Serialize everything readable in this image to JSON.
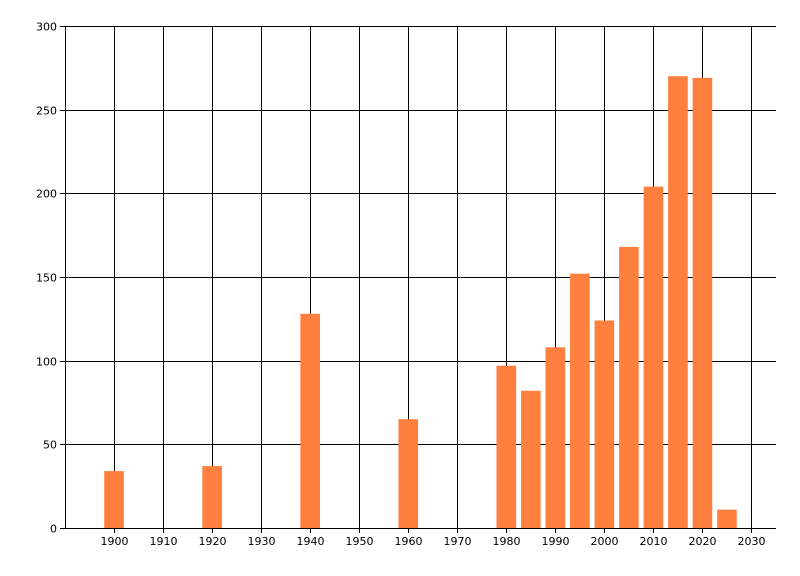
{
  "chart_data": {
    "type": "bar",
    "title": "",
    "xlabel": "",
    "ylabel": "",
    "xlim": [
      1890,
      2035
    ],
    "ylim": [
      0,
      300
    ],
    "x_ticks": [
      1900,
      1910,
      1920,
      1930,
      1940,
      1950,
      1960,
      1970,
      1980,
      1990,
      2000,
      2010,
      2020,
      2030
    ],
    "y_ticks": [
      0,
      50,
      100,
      150,
      200,
      250,
      300
    ],
    "grid": true,
    "legend": "none",
    "bar_color": "#ff7f3f",
    "bar_width_years": 4,
    "bars": [
      {
        "x": 1900,
        "value": 34
      },
      {
        "x": 1920,
        "value": 37
      },
      {
        "x": 1940,
        "value": 128
      },
      {
        "x": 1960,
        "value": 65
      },
      {
        "x": 1980,
        "value": 97
      },
      {
        "x": 1985,
        "value": 82
      },
      {
        "x": 1990,
        "value": 108
      },
      {
        "x": 1995,
        "value": 152
      },
      {
        "x": 2000,
        "value": 124
      },
      {
        "x": 2005,
        "value": 168
      },
      {
        "x": 2010,
        "value": 204
      },
      {
        "x": 2015,
        "value": 270
      },
      {
        "x": 2020,
        "value": 269
      },
      {
        "x": 2025,
        "value": 11
      }
    ]
  }
}
